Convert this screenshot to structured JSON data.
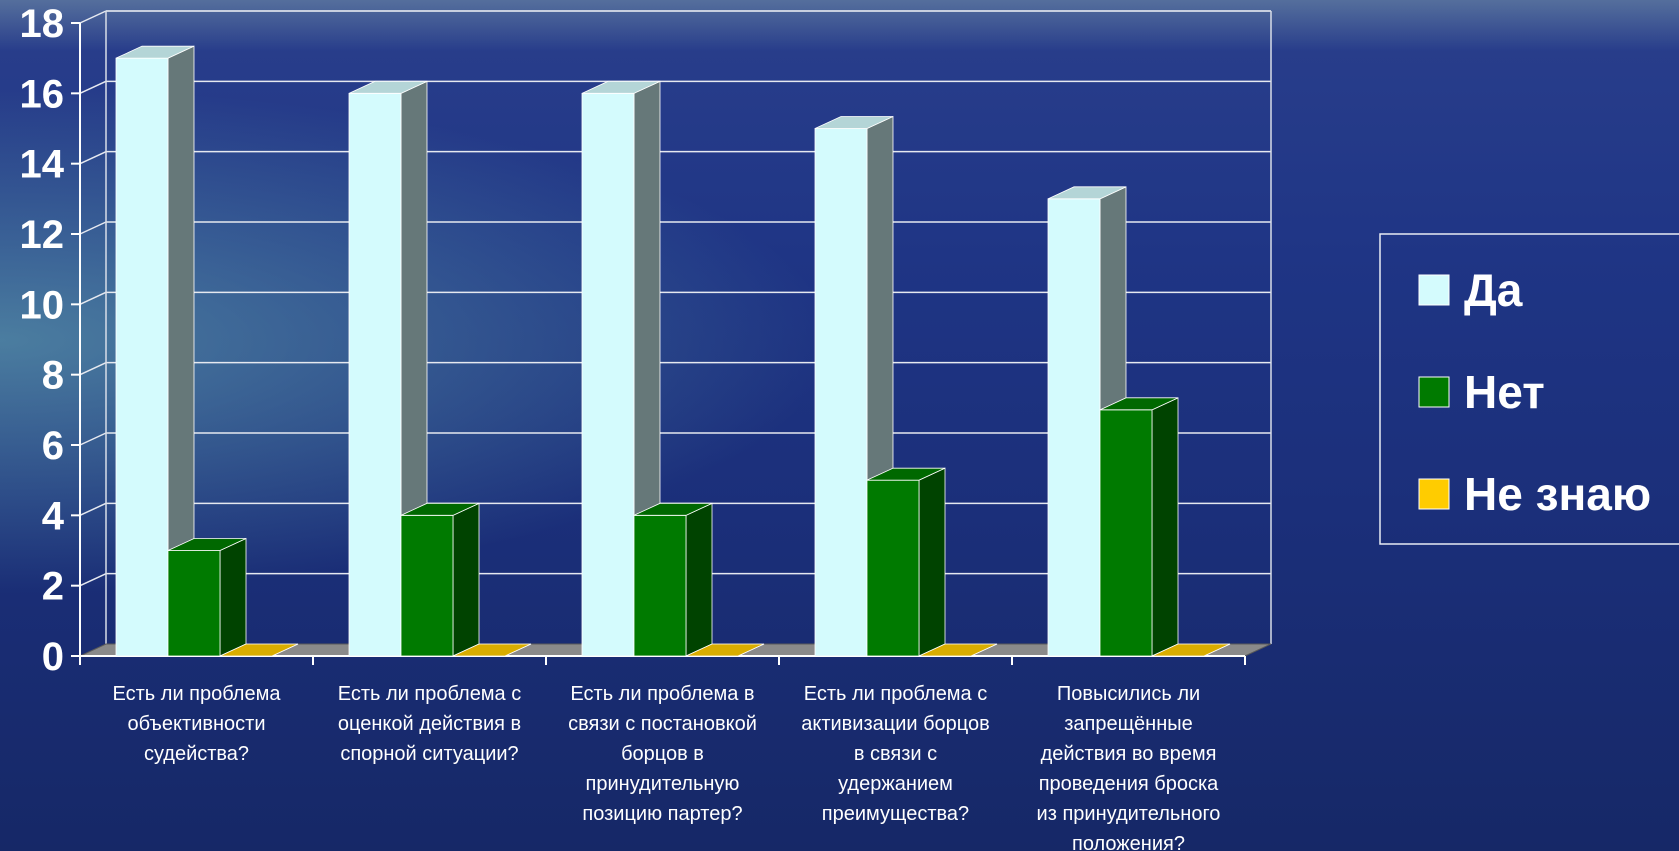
{
  "chart_data": {
    "type": "bar",
    "categories": [
      [
        "Есть ли проблема",
        "объективности",
        "судейства?"
      ],
      [
        "Есть ли проблема с",
        "оценкой действия в",
        "спорной ситуации?"
      ],
      [
        "Есть ли проблема в",
        "связи с постановкой",
        "борцов в",
        "принудительную",
        "позицию партер?"
      ],
      [
        "Есть ли проблема с",
        "активизации борцов",
        "в связи с",
        "удержанием",
        "преимущества?"
      ],
      [
        "Повысились ли",
        "запрещённые",
        "действия во время",
        "проведения броска",
        "из принудительного",
        "положения?"
      ]
    ],
    "series": [
      {
        "name": "Да",
        "values": [
          17,
          16,
          16,
          15,
          13
        ],
        "color": "#d4fbfd"
      },
      {
        "name": "Нет",
        "values": [
          3,
          4,
          4,
          5,
          7
        ],
        "color": "#007a00"
      },
      {
        "name": "Не знаю",
        "values": [
          0,
          0,
          0,
          0,
          0
        ],
        "color": "#ffcc00"
      }
    ],
    "ylim": [
      0,
      18
    ],
    "yticks": [
      0,
      2,
      4,
      6,
      8,
      10,
      12,
      14,
      16,
      18
    ],
    "grid": true,
    "legend_position": "right",
    "bar_style": "3d"
  }
}
